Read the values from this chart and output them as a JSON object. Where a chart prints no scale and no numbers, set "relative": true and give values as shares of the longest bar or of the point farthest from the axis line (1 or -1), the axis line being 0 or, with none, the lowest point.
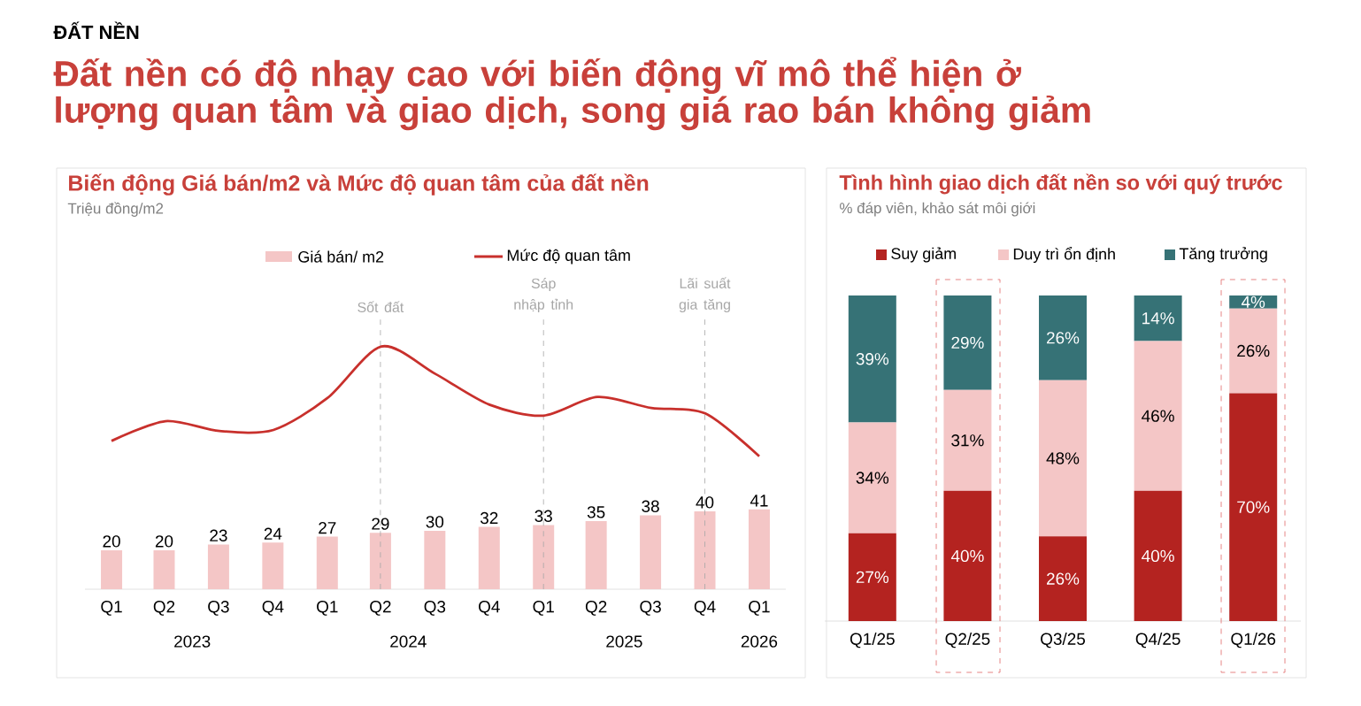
{
  "chart_data": [
    {
      "type": "other",
      "subtitle": "ĐẤT NỀN",
      "title": "Đất nền có độ nhạy cao với biến động vĩ mô thể hiện ở lượng quan tâm và giao dịch, song giá rao bán không giảm",
      "annotations": [
        "Biến động Giá bán/m2 và Mức độ quan tâm của đất nền",
        "Triệu đồng/m2"
      ]
    },
    {
      "type": "bar",
      "x": [
        "2023-02-15",
        "2023-05-15",
        "2023-08-15",
        "2023-11-15",
        "2024-02-15",
        "2024-05-15",
        "2024-08-15",
        "2024-11-15",
        "2025-02-15",
        "2025-05-15",
        "2025-08-15",
        "2025-11-15",
        "2026-02-15"
      ],
      "xlim": [
        "2023-01-01",
        "2026-04-01"
      ],
      "xticks": [
        {
          "value": "2023-02-15",
          "label": "Q1"
        },
        {
          "value": "2023-05-15",
          "label": "Q2"
        },
        {
          "value": "2023-08-15",
          "label": "Q3"
        },
        {
          "value": "2023-11-15",
          "label": "Q4"
        },
        {
          "value": "2024-02-15",
          "label": "Q1"
        },
        {
          "value": "2024-05-15",
          "label": "Q2"
        },
        {
          "value": "2024-08-15",
          "label": "Q3"
        },
        {
          "value": "2024-11-15",
          "label": "Q4"
        },
        {
          "value": "2025-02-15",
          "label": "Q1"
        },
        {
          "value": "2025-05-15",
          "label": "Q2"
        },
        {
          "value": "2025-08-15",
          "label": "Q3"
        },
        {
          "value": "2025-11-15",
          "label": "Q4"
        },
        {
          "value": "2026-02-15",
          "label": "Q1"
        }
      ],
      "annotations": [
        "2023",
        "2024",
        "2025",
        "2026"
      ],
      "series": [
        {
          "name": "Giá bán/ m2",
          "color": "#f4c6c6",
          "values": [
            20,
            20,
            23,
            24,
            27,
            29,
            30,
            32,
            33,
            35,
            38,
            40,
            41
          ]
        }
      ],
      "data_labels": true,
      "legend": "top",
      "ref_lines": [
        {
          "axis": "x",
          "value": "2024-05-15",
          "label": "Sốt đất",
          "color": "#a6a6a6",
          "line_style": "dashed"
        },
        {
          "axis": "x",
          "value": "2025-02-15",
          "label": "Sáp nhập tỉnh",
          "color": "#a6a6a6",
          "line_style": "dashed"
        },
        {
          "axis": "x",
          "value": "2025-11-15",
          "label": "Lãi suất gia tăng",
          "color": "#a6a6a6",
          "line_style": "dashed"
        }
      ]
    },
    {
      "type": "line",
      "relative": true,
      "tick_labels": false,
      "legend": "top",
      "marker": "none",
      "categories": [
        null,
        null,
        null,
        null,
        null,
        null,
        null,
        null,
        null,
        null,
        null,
        null,
        null
      ],
      "series": [
        {
          "name": "Mức độ quan tâm",
          "color": "#c8302c",
          "values": [
            0.14,
            0.32,
            0.23,
            0.24,
            0.53,
            1,
            0.75,
            0.47,
            0.37,
            0.54,
            0.44,
            0.39,
            0
          ]
        }
      ]
    },
    {
      "type": "bar",
      "stacked": true,
      "title": "Tình hình giao dịch đất nền so với quý trước",
      "subtitle": "% đáp viên, khảo sát môi giới",
      "categories": [
        "Q1/25",
        "Q2/25",
        "Q3/25",
        "Q4/25",
        "Q1/26"
      ],
      "legend": "top",
      "series": [
        {
          "name": "Suy giảm",
          "color": "#b42320",
          "values": [
            27,
            40,
            26,
            40,
            70
          ],
          "value_labels": [
            "27%",
            "40%",
            "26%",
            "40%",
            "70%"
          ]
        },
        {
          "name": "Duy trì ổn định",
          "color": "#f4c6c6",
          "values": [
            34,
            31,
            48,
            46,
            26
          ],
          "value_labels": [
            "34%",
            "31%",
            "48%",
            "46%",
            "26%"
          ]
        },
        {
          "name": "Tăng trưởng",
          "color": "#367276",
          "values": [
            39,
            29,
            26,
            14,
            4
          ],
          "value_labels": [
            "39%",
            "29%",
            "26%",
            "14%",
            "4%"
          ]
        }
      ]
    }
  ]
}
